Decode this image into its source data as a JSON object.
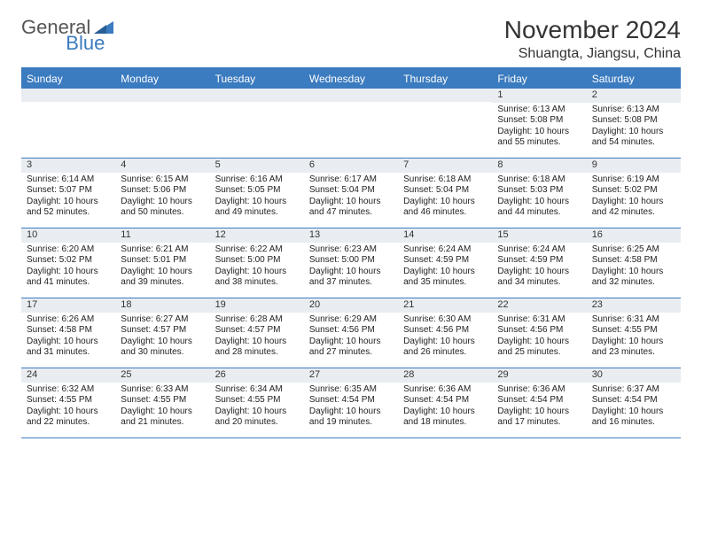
{
  "logo": {
    "text1": "General",
    "text2": "Blue"
  },
  "title": "November 2024",
  "location": "Shuangta, Jiangsu, China",
  "colors": {
    "accent": "#3b7bbf",
    "dow_bg": "#3b7bbf",
    "dow_text": "#ffffff",
    "daynum_bg": "#e9edf1",
    "text": "#333333",
    "body_text": "#222222",
    "background": "#ffffff"
  },
  "dow": [
    "Sunday",
    "Monday",
    "Tuesday",
    "Wednesday",
    "Thursday",
    "Friday",
    "Saturday"
  ],
  "weeks": [
    [
      {
        "day": "",
        "sunrise": "",
        "sunset": "",
        "daylight": ""
      },
      {
        "day": "",
        "sunrise": "",
        "sunset": "",
        "daylight": ""
      },
      {
        "day": "",
        "sunrise": "",
        "sunset": "",
        "daylight": ""
      },
      {
        "day": "",
        "sunrise": "",
        "sunset": "",
        "daylight": ""
      },
      {
        "day": "",
        "sunrise": "",
        "sunset": "",
        "daylight": ""
      },
      {
        "day": "1",
        "sunrise": "Sunrise: 6:13 AM",
        "sunset": "Sunset: 5:08 PM",
        "daylight": "Daylight: 10 hours and 55 minutes."
      },
      {
        "day": "2",
        "sunrise": "Sunrise: 6:13 AM",
        "sunset": "Sunset: 5:08 PM",
        "daylight": "Daylight: 10 hours and 54 minutes."
      }
    ],
    [
      {
        "day": "3",
        "sunrise": "Sunrise: 6:14 AM",
        "sunset": "Sunset: 5:07 PM",
        "daylight": "Daylight: 10 hours and 52 minutes."
      },
      {
        "day": "4",
        "sunrise": "Sunrise: 6:15 AM",
        "sunset": "Sunset: 5:06 PM",
        "daylight": "Daylight: 10 hours and 50 minutes."
      },
      {
        "day": "5",
        "sunrise": "Sunrise: 6:16 AM",
        "sunset": "Sunset: 5:05 PM",
        "daylight": "Daylight: 10 hours and 49 minutes."
      },
      {
        "day": "6",
        "sunrise": "Sunrise: 6:17 AM",
        "sunset": "Sunset: 5:04 PM",
        "daylight": "Daylight: 10 hours and 47 minutes."
      },
      {
        "day": "7",
        "sunrise": "Sunrise: 6:18 AM",
        "sunset": "Sunset: 5:04 PM",
        "daylight": "Daylight: 10 hours and 46 minutes."
      },
      {
        "day": "8",
        "sunrise": "Sunrise: 6:18 AM",
        "sunset": "Sunset: 5:03 PM",
        "daylight": "Daylight: 10 hours and 44 minutes."
      },
      {
        "day": "9",
        "sunrise": "Sunrise: 6:19 AM",
        "sunset": "Sunset: 5:02 PM",
        "daylight": "Daylight: 10 hours and 42 minutes."
      }
    ],
    [
      {
        "day": "10",
        "sunrise": "Sunrise: 6:20 AM",
        "sunset": "Sunset: 5:02 PM",
        "daylight": "Daylight: 10 hours and 41 minutes."
      },
      {
        "day": "11",
        "sunrise": "Sunrise: 6:21 AM",
        "sunset": "Sunset: 5:01 PM",
        "daylight": "Daylight: 10 hours and 39 minutes."
      },
      {
        "day": "12",
        "sunrise": "Sunrise: 6:22 AM",
        "sunset": "Sunset: 5:00 PM",
        "daylight": "Daylight: 10 hours and 38 minutes."
      },
      {
        "day": "13",
        "sunrise": "Sunrise: 6:23 AM",
        "sunset": "Sunset: 5:00 PM",
        "daylight": "Daylight: 10 hours and 37 minutes."
      },
      {
        "day": "14",
        "sunrise": "Sunrise: 6:24 AM",
        "sunset": "Sunset: 4:59 PM",
        "daylight": "Daylight: 10 hours and 35 minutes."
      },
      {
        "day": "15",
        "sunrise": "Sunrise: 6:24 AM",
        "sunset": "Sunset: 4:59 PM",
        "daylight": "Daylight: 10 hours and 34 minutes."
      },
      {
        "day": "16",
        "sunrise": "Sunrise: 6:25 AM",
        "sunset": "Sunset: 4:58 PM",
        "daylight": "Daylight: 10 hours and 32 minutes."
      }
    ],
    [
      {
        "day": "17",
        "sunrise": "Sunrise: 6:26 AM",
        "sunset": "Sunset: 4:58 PM",
        "daylight": "Daylight: 10 hours and 31 minutes."
      },
      {
        "day": "18",
        "sunrise": "Sunrise: 6:27 AM",
        "sunset": "Sunset: 4:57 PM",
        "daylight": "Daylight: 10 hours and 30 minutes."
      },
      {
        "day": "19",
        "sunrise": "Sunrise: 6:28 AM",
        "sunset": "Sunset: 4:57 PM",
        "daylight": "Daylight: 10 hours and 28 minutes."
      },
      {
        "day": "20",
        "sunrise": "Sunrise: 6:29 AM",
        "sunset": "Sunset: 4:56 PM",
        "daylight": "Daylight: 10 hours and 27 minutes."
      },
      {
        "day": "21",
        "sunrise": "Sunrise: 6:30 AM",
        "sunset": "Sunset: 4:56 PM",
        "daylight": "Daylight: 10 hours and 26 minutes."
      },
      {
        "day": "22",
        "sunrise": "Sunrise: 6:31 AM",
        "sunset": "Sunset: 4:56 PM",
        "daylight": "Daylight: 10 hours and 25 minutes."
      },
      {
        "day": "23",
        "sunrise": "Sunrise: 6:31 AM",
        "sunset": "Sunset: 4:55 PM",
        "daylight": "Daylight: 10 hours and 23 minutes."
      }
    ],
    [
      {
        "day": "24",
        "sunrise": "Sunrise: 6:32 AM",
        "sunset": "Sunset: 4:55 PM",
        "daylight": "Daylight: 10 hours and 22 minutes."
      },
      {
        "day": "25",
        "sunrise": "Sunrise: 6:33 AM",
        "sunset": "Sunset: 4:55 PM",
        "daylight": "Daylight: 10 hours and 21 minutes."
      },
      {
        "day": "26",
        "sunrise": "Sunrise: 6:34 AM",
        "sunset": "Sunset: 4:55 PM",
        "daylight": "Daylight: 10 hours and 20 minutes."
      },
      {
        "day": "27",
        "sunrise": "Sunrise: 6:35 AM",
        "sunset": "Sunset: 4:54 PM",
        "daylight": "Daylight: 10 hours and 19 minutes."
      },
      {
        "day": "28",
        "sunrise": "Sunrise: 6:36 AM",
        "sunset": "Sunset: 4:54 PM",
        "daylight": "Daylight: 10 hours and 18 minutes."
      },
      {
        "day": "29",
        "sunrise": "Sunrise: 6:36 AM",
        "sunset": "Sunset: 4:54 PM",
        "daylight": "Daylight: 10 hours and 17 minutes."
      },
      {
        "day": "30",
        "sunrise": "Sunrise: 6:37 AM",
        "sunset": "Sunset: 4:54 PM",
        "daylight": "Daylight: 10 hours and 16 minutes."
      }
    ]
  ]
}
